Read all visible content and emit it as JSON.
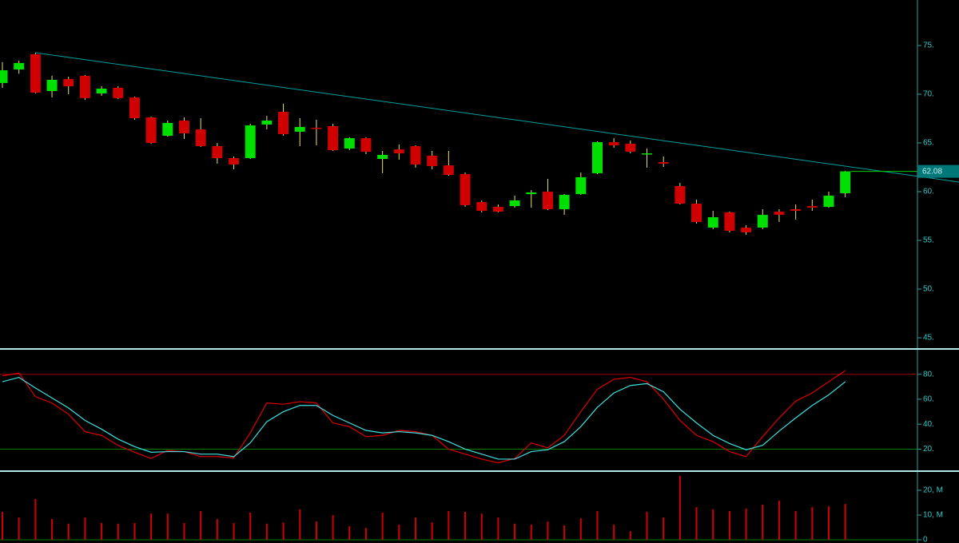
{
  "chart_data": [
    {
      "type": "candlestick",
      "open": [
        71.15,
        72.54,
        74.1,
        70.33,
        71.56,
        71.89,
        70.08,
        70.66,
        69.67,
        67.62,
        65.74,
        67.3,
        66.39,
        64.67,
        63.44,
        63.44,
        66.89,
        68.2,
        66.15,
        66.56,
        66.72,
        64.43,
        65.49,
        63.36,
        64.34,
        64.67,
        63.69,
        62.7,
        61.8,
        58.93,
        58.44,
        58.52,
        59.75,
        60.0,
        58.2,
        59.75,
        61.89,
        65.08,
        64.92,
        63.85,
        63.03,
        60.57,
        58.77,
        56.31,
        57.87,
        56.31,
        56.31,
        57.95,
        58.2,
        58.52,
        58.44,
        59.84
      ],
      "high": [
        73.3,
        73.44,
        74.26,
        71.9,
        71.8,
        71.97,
        70.82,
        70.82,
        69.75,
        67.7,
        67.3,
        67.62,
        67.54,
        65.0,
        63.61,
        66.97,
        67.79,
        69.02,
        67.54,
        67.38,
        66.97,
        65.57,
        65.57,
        64.18,
        64.84,
        64.75,
        64.18,
        64.18,
        61.97,
        59.1,
        58.69,
        59.59,
        60.16,
        61.31,
        59.75,
        61.97,
        65.16,
        65.49,
        65.25,
        64.43,
        63.61,
        60.9,
        59.18,
        58.03,
        57.95,
        56.56,
        58.2,
        58.2,
        58.69,
        59.18,
        60.0,
        62.13
      ],
      "low": [
        70.65,
        72.1,
        70.08,
        69.67,
        70.0,
        69.43,
        69.84,
        69.5,
        67.38,
        64.92,
        65.66,
        65.41,
        64.59,
        62.87,
        62.3,
        63.36,
        66.39,
        65.74,
        64.67,
        64.75,
        64.18,
        64.26,
        63.85,
        61.89,
        63.28,
        62.46,
        62.3,
        61.64,
        58.44,
        57.87,
        57.87,
        58.36,
        58.36,
        58.11,
        57.62,
        59.67,
        61.8,
        64.51,
        63.93,
        62.46,
        62.54,
        58.69,
        56.72,
        56.15,
        55.82,
        55.57,
        56.15,
        56.89,
        57.13,
        58.03,
        58.36,
        59.43
      ],
      "close": [
        72.46,
        73.2,
        70.16,
        71.48,
        70.82,
        69.6,
        70.57,
        69.6,
        67.54,
        65.0,
        67.05,
        65.98,
        64.67,
        63.44,
        62.79,
        66.8,
        67.3,
        65.9,
        66.64,
        66.48,
        64.26,
        65.49,
        64.1,
        63.77,
        63.93,
        62.79,
        62.62,
        61.72,
        58.61,
        58.03,
        57.95,
        59.1,
        59.92,
        58.2,
        59.67,
        61.48,
        65.08,
        64.75,
        64.1,
        63.93,
        62.87,
        58.77,
        56.89,
        57.38,
        55.98,
        55.82,
        57.62,
        57.62,
        58.03,
        58.36,
        59.59,
        62.08
      ],
      "up_color": "#00e000",
      "down_color": "#d00000",
      "wick_color": "#e8e070",
      "ylim": [
        44.02,
        79.67
      ],
      "yticks": [
        {
          "value": 75,
          "label": "75."
        },
        {
          "value": 70,
          "label": "70."
        },
        {
          "value": 65,
          "label": "65."
        },
        {
          "value": 60,
          "label": "60."
        },
        {
          "value": 55,
          "label": "55."
        },
        {
          "value": 50,
          "label": "50."
        },
        {
          "value": 45,
          "label": "45."
        }
      ],
      "last_price": 62.08,
      "trendline": {
        "start": [
          2,
          74.26
        ],
        "end": [
          57.9,
          60.98
        ],
        "color": "#00a0a0"
      }
    },
    {
      "type": "line",
      "series": [
        {
          "color": "#e00000",
          "values": [
            78.7,
            81,
            62,
            57,
            48,
            34,
            31,
            23,
            17.5,
            12.5,
            19,
            18,
            14,
            14,
            13,
            33,
            57,
            56,
            58,
            57,
            41,
            38,
            30,
            31,
            35,
            34,
            31,
            20,
            16,
            12,
            9,
            12.5,
            25,
            21,
            31,
            50,
            68,
            76,
            77.5,
            74,
            60,
            43,
            31,
            26,
            18,
            14,
            30,
            45,
            58.5,
            65,
            74,
            83
          ]
        },
        {
          "color": "#40e0e0",
          "values": [
            74,
            77.5,
            69,
            61,
            53,
            43,
            36,
            28,
            22,
            17.5,
            18,
            18,
            16,
            16,
            14,
            25,
            42,
            50,
            55,
            55,
            47,
            41,
            35,
            33,
            34,
            33,
            31,
            26,
            20,
            16,
            12,
            12,
            18,
            19.5,
            26,
            38,
            53.5,
            65,
            71,
            72.5,
            66,
            52,
            41,
            31,
            24.5,
            19.5,
            23,
            34.5,
            45,
            55,
            63.5,
            74
          ]
        }
      ],
      "hlines": [
        {
          "value": 80,
          "color": "#a00000"
        },
        {
          "value": 20,
          "color": "#008000"
        }
      ],
      "ylim": [
        3,
        99
      ],
      "yticks": [
        {
          "value": 80,
          "label": "80."
        },
        {
          "value": 60,
          "label": "60."
        },
        {
          "value": 40,
          "label": "40."
        },
        {
          "value": 20,
          "label": "20."
        }
      ]
    },
    {
      "type": "bar",
      "values": [
        11.3,
        9,
        16.5,
        8.4,
        6.5,
        9,
        6.8,
        6.5,
        6.8,
        10.6,
        10.6,
        6.8,
        11.6,
        8.4,
        6.8,
        11,
        6.5,
        7,
        12.3,
        7.4,
        10,
        5.5,
        4.8,
        11,
        6.1,
        9,
        7,
        11.6,
        11.3,
        10.6,
        9,
        6.5,
        6.1,
        7.4,
        5.8,
        8.7,
        11.6,
        6.1,
        3.5,
        11.3,
        9,
        25.8,
        13.2,
        12.3,
        11.6,
        12.6,
        14.2,
        15.8,
        11.6,
        13.2,
        13.5,
        14.5
      ],
      "color": "#d00000",
      "ylim": [
        0,
        27.1
      ],
      "yticks": [
        {
          "value": 20,
          "label": "20, M"
        },
        {
          "value": 10,
          "label": "10, M"
        },
        0
      ]
    }
  ]
}
